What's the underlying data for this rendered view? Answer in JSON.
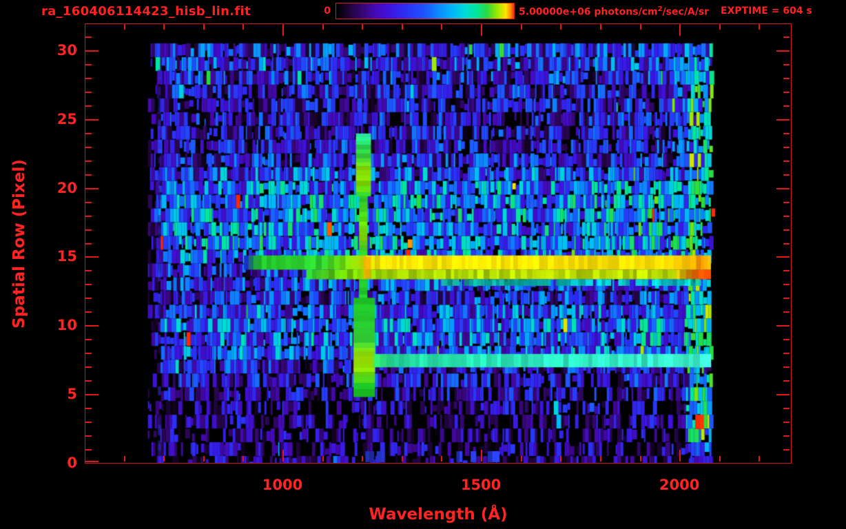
{
  "header": {
    "title": "ra_160406114423_hisb_lin.fit",
    "colorbar_min_label": "0",
    "units_prefix": "5.00000e+06 photons/cm",
    "units_sup": "2",
    "units_suffix": "/sec/A/sr",
    "exptime": "EXPTIME = 604 s",
    "text_color": "#ff2222"
  },
  "chart_data": {
    "type": "heatmap",
    "title": "ra_160406114423_hisb_lin.fit",
    "xlabel": "Wavelength (Å)",
    "ylabel": "Spatial Row (Pixel)",
    "xlim": [
      503.5,
      2281
    ],
    "ylim": [
      0,
      31.9
    ],
    "data_rows": 31,
    "wavelength_coverage": [
      661,
      2078
    ],
    "colorbar": {
      "min": 0,
      "max": 5000000,
      "max_label": "5.00000e+06",
      "units": "photons/cm^2/sec/A/sr"
    },
    "exptime_seconds": 604,
    "x_ticks": {
      "major": [
        1000,
        1500,
        2000
      ],
      "minor_step": 100,
      "minor_start": 600,
      "minor_end": 2200
    },
    "y_ticks": {
      "major": [
        0,
        5,
        10,
        15,
        20,
        25,
        30
      ],
      "minor_step": 1,
      "minor_max": 31
    },
    "axis_color": "#e21818",
    "label_color": "#ff2424",
    "palette": [
      [
        0.0,
        "#000000"
      ],
      [
        0.05,
        "#140224"
      ],
      [
        0.1,
        "#27064e"
      ],
      [
        0.16,
        "#390780"
      ],
      [
        0.22,
        "#4509b4"
      ],
      [
        0.3,
        "#3c14e0"
      ],
      [
        0.4,
        "#2a33f6"
      ],
      [
        0.5,
        "#1e56ff"
      ],
      [
        0.58,
        "#0c8cff"
      ],
      [
        0.66,
        "#00baf8"
      ],
      [
        0.73,
        "#00dcd2"
      ],
      [
        0.79,
        "#00e69c"
      ],
      [
        0.85,
        "#2cda3e"
      ],
      [
        0.91,
        "#a2e800"
      ],
      [
        0.955,
        "#ffe400"
      ],
      [
        0.98,
        "#ff9000"
      ],
      [
        1.0,
        "#ff2800"
      ]
    ],
    "noise": {
      "seed": 20160406,
      "row_base": [
        0.05,
        0.07,
        0.07,
        0.06,
        0.08,
        0.16,
        0.2,
        0.24,
        0.4,
        0.42,
        0.44,
        0.4,
        0.3,
        0.34,
        0.3,
        0.46,
        0.5,
        0.48,
        0.5,
        0.5,
        0.46,
        0.38,
        0.28,
        0.25,
        0.22,
        0.2,
        0.22,
        0.25,
        0.28,
        0.33,
        0.3
      ],
      "variance": 0.6,
      "seg_min": 2,
      "seg_max": 7,
      "lam_start": 661,
      "lam_ramp_end": 702,
      "lam_end": 2078,
      "mid_boost": {
        "lam": [
          1850,
          2016
        ],
        "factor": 1.12
      },
      "right_strip": {
        "lam": [
          2016,
          2078
        ],
        "level": 0.62,
        "spread": 0.45,
        "gap": 0.13
      }
    },
    "features": [
      {
        "name": "faint-column-690A",
        "kind": "vband",
        "lam": [
          686,
          694
        ],
        "rows": [
          0.8,
          29.7
        ],
        "stops": [
          [
            0,
            "#2a22b0"
          ],
          [
            1,
            "#2a22b0"
          ]
        ],
        "jitter": 0.35,
        "gap": 0.45,
        "seg": 9,
        "alpha": 0.55
      },
      {
        "name": "lyman-alpha-column-thin",
        "kind": "vband",
        "lam": [
          1193,
          1214
        ],
        "rows": [
          11.9,
          19.55
        ],
        "stops": [
          [
            0,
            "#1ec829"
          ],
          [
            0.45,
            "#2ad231"
          ],
          [
            0.62,
            "#8ade00"
          ],
          [
            0.78,
            "#55d810"
          ],
          [
            1,
            "#2bd334"
          ]
        ],
        "jitter": 0.12,
        "seg": 7
      },
      {
        "name": "lyman-alpha-column-wide",
        "kind": "vband",
        "lam": [
          1185,
          1223
        ],
        "rows": [
          19.55,
          23.95
        ],
        "stops": [
          [
            0,
            "#2ad032"
          ],
          [
            0.2,
            "#7edc00"
          ],
          [
            0.45,
            "#8ee400"
          ],
          [
            0.62,
            "#3cd838"
          ],
          [
            0.8,
            "#28d84e"
          ],
          [
            1,
            "#2ae29e"
          ]
        ],
        "jitter": 0.12,
        "seg": 7
      },
      {
        "name": "lyman-alpha-blob-lower",
        "kind": "vband",
        "lam": [
          1179,
          1233
        ],
        "rows": [
          4.85,
          12.0
        ],
        "stops": [
          [
            0,
            "#14b91f"
          ],
          [
            0.14,
            "#1ecf29"
          ],
          [
            0.3,
            "#8ce000"
          ],
          [
            0.44,
            "#a0e800"
          ],
          [
            0.58,
            "#38da3a"
          ],
          [
            0.82,
            "#26d02e"
          ],
          [
            1,
            "#1fc827"
          ]
        ],
        "jitter": 0.1,
        "seg": 8
      },
      {
        "name": "continuum-streak-row14-upper",
        "kind": "hband",
        "rows": [
          14.05,
          15.08
        ],
        "lam": [
          903,
          2078
        ],
        "stops": [
          [
            0,
            "#1c2fd2"
          ],
          [
            0.015,
            "#1e9e46"
          ],
          [
            0.035,
            "#25cc2c"
          ],
          [
            0.16,
            "#2ed42f"
          ],
          [
            0.205,
            "#66da0e"
          ],
          [
            0.245,
            "#b4e600"
          ],
          [
            0.28,
            "#ffe600"
          ],
          [
            0.88,
            "#ffe200"
          ],
          [
            0.95,
            "#ffc400"
          ],
          [
            0.975,
            "#ff8c00"
          ],
          [
            1,
            "#ffd000"
          ]
        ],
        "jitter": 0.13,
        "seg": 7
      },
      {
        "name": "continuum-streak-row14-lower",
        "kind": "hband",
        "rows": [
          13.35,
          14.05
        ],
        "lam": [
          1060,
          2078
        ],
        "stops": [
          [
            0,
            "#2cc231"
          ],
          [
            0.1,
            "#74d200"
          ],
          [
            0.2,
            "#a6d800"
          ],
          [
            0.6,
            "#bede00"
          ],
          [
            0.9,
            "#b8dc00"
          ],
          [
            0.955,
            "#ff6e00"
          ],
          [
            1,
            "#ff3800"
          ]
        ],
        "jitter": 0.2,
        "seg": 7
      },
      {
        "name": "cyan-subline-row13",
        "kind": "hband",
        "rows": [
          12.87,
          13.35
        ],
        "lam": [
          1400,
          2042
        ],
        "stops": [
          [
            0,
            "#10b48e"
          ],
          [
            0.5,
            "#00d8c0"
          ],
          [
            1,
            "#00d0c6"
          ]
        ],
        "jitter": 0.3,
        "gap": 0.12,
        "seg": 8,
        "alpha": 0.85
      },
      {
        "name": "cyan-streak-row7",
        "kind": "hband",
        "rows": [
          6.95,
          7.92
        ],
        "lam": [
          1230,
          2077
        ],
        "stops": [
          [
            0,
            "#2bd36a"
          ],
          [
            0.06,
            "#24e0a2"
          ],
          [
            0.5,
            "#2ceec2"
          ],
          [
            1,
            "#3cf0cc"
          ]
        ],
        "jitter": 0.16,
        "seg": 7
      },
      {
        "name": "lya-streak-crossing-orange",
        "kind": "hband",
        "rows": [
          13.4,
          15.0
        ],
        "lam": [
          1203,
          1219
        ],
        "stops": [
          [
            0,
            "#ff9c00"
          ],
          [
            1,
            "#ffb400"
          ]
        ],
        "jitter": 0.12,
        "seg": 5,
        "alpha": 0.75
      },
      {
        "name": "red-dashes-bottom-right",
        "kind": "hband",
        "rows": [
          2.45,
          3.5
        ],
        "lam": [
          2040,
          2074
        ],
        "stops": [
          [
            0,
            "#ff2c00"
          ],
          [
            1,
            "#ff4600"
          ]
        ],
        "jitter": 0.25,
        "gap": 0.3,
        "seg": 6
      },
      {
        "name": "red-dash-row28",
        "kind": "hband",
        "rows": [
          27.7,
          29.3
        ],
        "lam": [
          2080,
          2089
        ],
        "stops": [
          [
            0,
            "#ff2600"
          ],
          [
            1,
            "#ff3000"
          ]
        ],
        "jitter": 0.2,
        "gap": 0.25,
        "seg": 5
      },
      {
        "name": "red-dash-row18",
        "kind": "hband",
        "rows": [
          17.9,
          18.5
        ],
        "lam": [
          2081,
          2088
        ],
        "stops": [
          [
            0,
            "#ff2600"
          ],
          [
            1,
            "#ff2600"
          ]
        ],
        "jitter": 0.2,
        "seg": 5
      },
      {
        "name": "bottom-blue-dashes-1",
        "kind": "hband",
        "rows": [
          0.05,
          0.85
        ],
        "lam": [
          1185,
          1265
        ],
        "stops": [
          [
            0,
            "#2336cc"
          ],
          [
            1,
            "#2336cc"
          ]
        ],
        "jitter": 0.3,
        "gap": 0.55,
        "seg": 6
      },
      {
        "name": "bottom-blue-dashes-2",
        "kind": "hband",
        "rows": [
          0.05,
          0.85
        ],
        "lam": [
          1430,
          1548
        ],
        "stops": [
          [
            0,
            "#2336cc"
          ],
          [
            1,
            "#2336cc"
          ]
        ],
        "jitter": 0.3,
        "gap": 0.6,
        "seg": 6
      }
    ]
  }
}
